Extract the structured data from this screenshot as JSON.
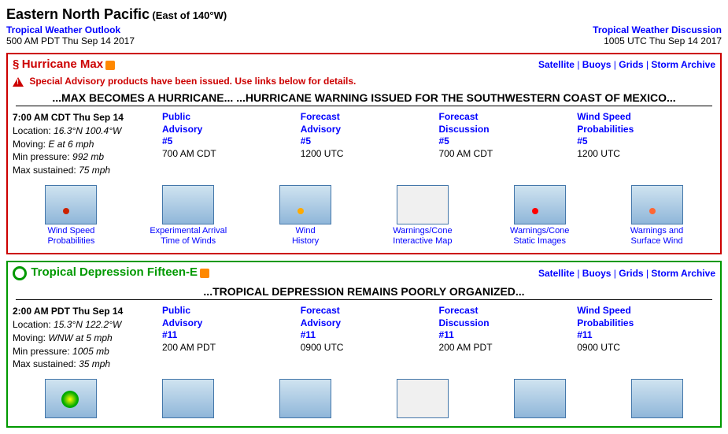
{
  "header": {
    "region_title": "Eastern North Pacific",
    "region_sub": "(East of 140°W)",
    "two_label": "Tropical Weather Outlook",
    "two_time": "500 AM PDT Thu Sep 14 2017",
    "twd_label": "Tropical Weather Discussion",
    "twd_time": "1005 UTC Thu Sep 14 2017"
  },
  "nav": {
    "satellite": "Satellite",
    "buoys": "Buoys",
    "grids": "Grids",
    "archive": "Storm Archive",
    "sep": " | "
  },
  "storm1": {
    "border_color": "#cc0000",
    "title": "Hurricane Max",
    "special": "Special Advisory products have been issued.  Use links below for details.",
    "headline": "...MAX BECOMES A HURRICANE... ...HURRICANE WARNING ISSUED FOR THE SOUTHWESTERN COAST OF MEXICO...",
    "time": "7:00 AM CDT Thu Sep 14",
    "loc_label": "Location:",
    "loc": "16.3°N 100.4°W",
    "move_label": "Moving:",
    "move": "E at 6 mph",
    "pres_label": "Min pressure:",
    "pres": "992 mb",
    "wind_label": "Max sustained:",
    "wind": "75 mph",
    "prods": [
      {
        "l1": "Public",
        "l2": "Advisory",
        "num": "#5",
        "time": "700 AM CDT"
      },
      {
        "l1": "Forecast",
        "l2": "Advisory",
        "num": "#5",
        "time": "1200 UTC"
      },
      {
        "l1": "Forecast",
        "l2": "Discussion",
        "num": "#5",
        "time": "700 AM CDT"
      },
      {
        "l1": "Wind Speed",
        "l2": "Probabilities",
        "num": "#5",
        "time": "1200 UTC"
      }
    ],
    "thumbs": [
      {
        "l1": "Wind Speed",
        "l2": "Probabilities",
        "dot": "#cc2200"
      },
      {
        "l1": "Experimental Arrival",
        "l2": "Time of Winds",
        "dot": ""
      },
      {
        "l1": "Wind",
        "l2": "History",
        "dot": "#ffaa00"
      },
      {
        "l1": "Warnings/Cone",
        "l2": "Interactive Map",
        "dot": "",
        "world": true
      },
      {
        "l1": "Warnings/Cone",
        "l2": "Static Images",
        "dot": "#ff0000"
      },
      {
        "l1": "Warnings and",
        "l2": "Surface Wind",
        "dot": "#ff6633"
      }
    ]
  },
  "storm2": {
    "border_color": "#009900",
    "title": "Tropical Depression Fifteen-E",
    "headline": "...TROPICAL DEPRESSION REMAINS POORLY ORGANIZED...",
    "time": "2:00 AM PDT Thu Sep 14",
    "loc_label": "Location:",
    "loc": "15.3°N 122.2°W",
    "move_label": "Moving:",
    "move": "WNW at 5 mph",
    "pres_label": "Min pressure:",
    "pres": "1005 mb",
    "wind_label": "Max sustained:",
    "wind": "35 mph",
    "prods": [
      {
        "l1": "Public",
        "l2": "Advisory",
        "num": "#11",
        "time": "200 AM PDT"
      },
      {
        "l1": "Forecast",
        "l2": "Advisory",
        "num": "#11",
        "time": "0900 UTC"
      },
      {
        "l1": "Forecast",
        "l2": "Discussion",
        "num": "#11",
        "time": "200 AM PDT"
      },
      {
        "l1": "Wind Speed",
        "l2": "Probabilities",
        "num": "#11",
        "time": "0900 UTC"
      }
    ]
  }
}
